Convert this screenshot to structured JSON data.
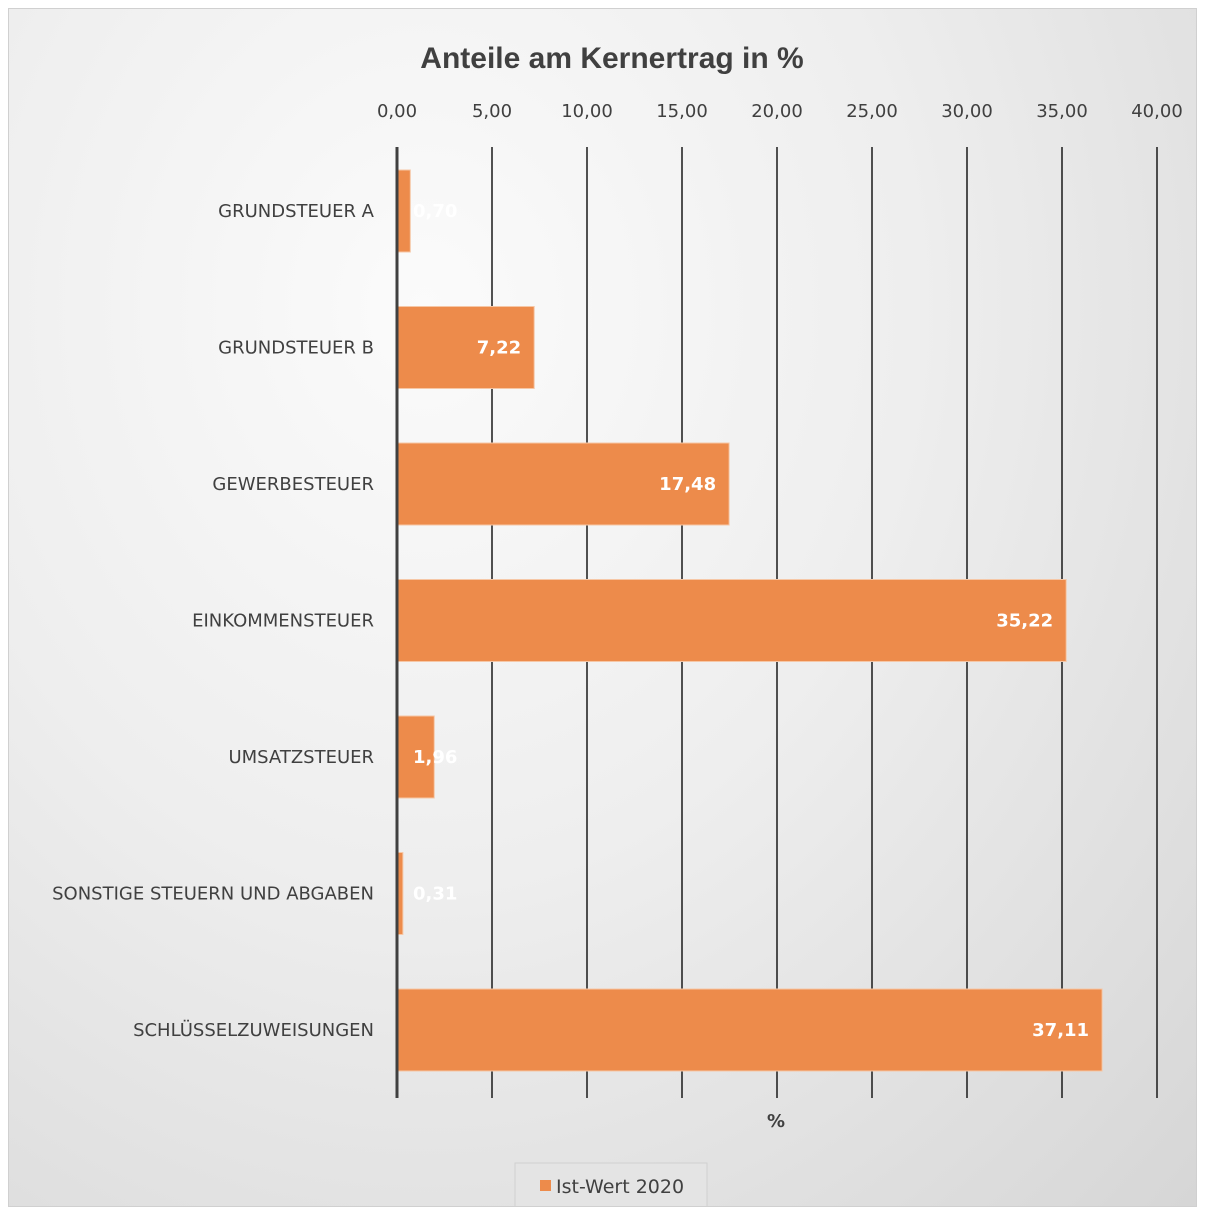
{
  "chart_data": {
    "type": "bar",
    "orientation": "horizontal",
    "title": "Anteile am Kernertrag in %",
    "xlabel": "%",
    "xlim": [
      0,
      40
    ],
    "x_ticks": [
      "0,00",
      "5,00",
      "10,00",
      "15,00",
      "20,00",
      "25,00",
      "30,00",
      "35,00",
      "40,00"
    ],
    "x_tick_values": [
      0,
      5,
      10,
      15,
      20,
      25,
      30,
      35,
      40
    ],
    "categories": [
      "GRUNDSTEUER A",
      "GRUNDSTEUER B",
      "GEWERBESTEUER",
      "EINKOMMENSTEUER",
      "UMSATZSTEUER",
      "SONSTIGE STEUERN UND ABGABEN",
      "SCHLÜSSELZUWEISUNGEN"
    ],
    "series": [
      {
        "name": "Ist-Wert 2020",
        "color": "#ED8B4B",
        "values": [
          0.7,
          7.22,
          17.48,
          35.22,
          1.96,
          0.31,
          37.11
        ],
        "labels": [
          "0,70",
          "7,22",
          "17,48",
          "35,22",
          "1,96",
          "0,31",
          "37,11"
        ]
      }
    ],
    "grid": true,
    "axis_position": "top",
    "legend": {
      "position": "bottom"
    }
  }
}
